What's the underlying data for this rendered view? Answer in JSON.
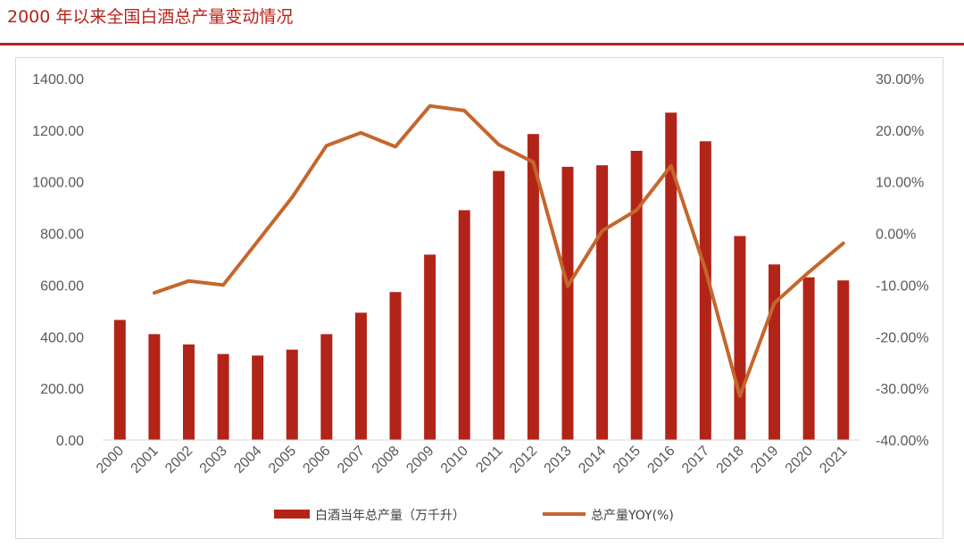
{
  "page": {
    "title": "2000 年以来全国白酒总产量变动情况"
  },
  "colors": {
    "bar": "#b22418",
    "line": "#c5662c",
    "accent": "#b7231b",
    "axis": "#d9d9d9"
  },
  "chart_data": {
    "type": "bar+line",
    "title": "",
    "categories": [
      "2000",
      "2001",
      "2002",
      "2003",
      "2004",
      "2005",
      "2006",
      "2007",
      "2008",
      "2009",
      "2010",
      "2011",
      "2012",
      "2013",
      "2014",
      "2015",
      "2016",
      "2017",
      "2018",
      "2019",
      "2020",
      "2021"
    ],
    "series": [
      {
        "name": "白酒当年总产量（万千升）",
        "type": "bar",
        "axis": "left",
        "values": [
          465,
          410,
          370,
          333,
          327,
          350,
          410,
          493,
          573,
          718,
          890,
          1042,
          1185,
          1058,
          1064,
          1120,
          1268,
          1157,
          790,
          680,
          630,
          618
        ]
      },
      {
        "name": "总产量YOY(%)",
        "type": "line",
        "axis": "right",
        "values": [
          null,
          -11.5,
          -9.2,
          -10.0,
          -1.5,
          7.0,
          17.0,
          19.5,
          16.8,
          24.7,
          23.8,
          17.2,
          13.8,
          -10.2,
          0.5,
          4.5,
          13.1,
          -7.0,
          -31.5,
          -13.5,
          -7.5,
          -1.9
        ]
      }
    ],
    "y_left": {
      "ylim": [
        0,
        1400
      ],
      "ticks": [
        0,
        200,
        400,
        600,
        800,
        1000,
        1200,
        1400
      ],
      "labels": [
        "0.00",
        "200.00",
        "400.00",
        "600.00",
        "800.00",
        "1000.00",
        "1200.00",
        "1400.00"
      ]
    },
    "y_right": {
      "ylim": [
        -40,
        30
      ],
      "ticks": [
        -40,
        -30,
        -20,
        -10,
        0,
        10,
        20,
        30
      ],
      "labels": [
        "-40.00%",
        "-30.00%",
        "-20.00%",
        "-10.00%",
        "0.00%",
        "10.00%",
        "20.00%",
        "30.00%"
      ]
    },
    "grid": false,
    "legend": "bottom"
  }
}
